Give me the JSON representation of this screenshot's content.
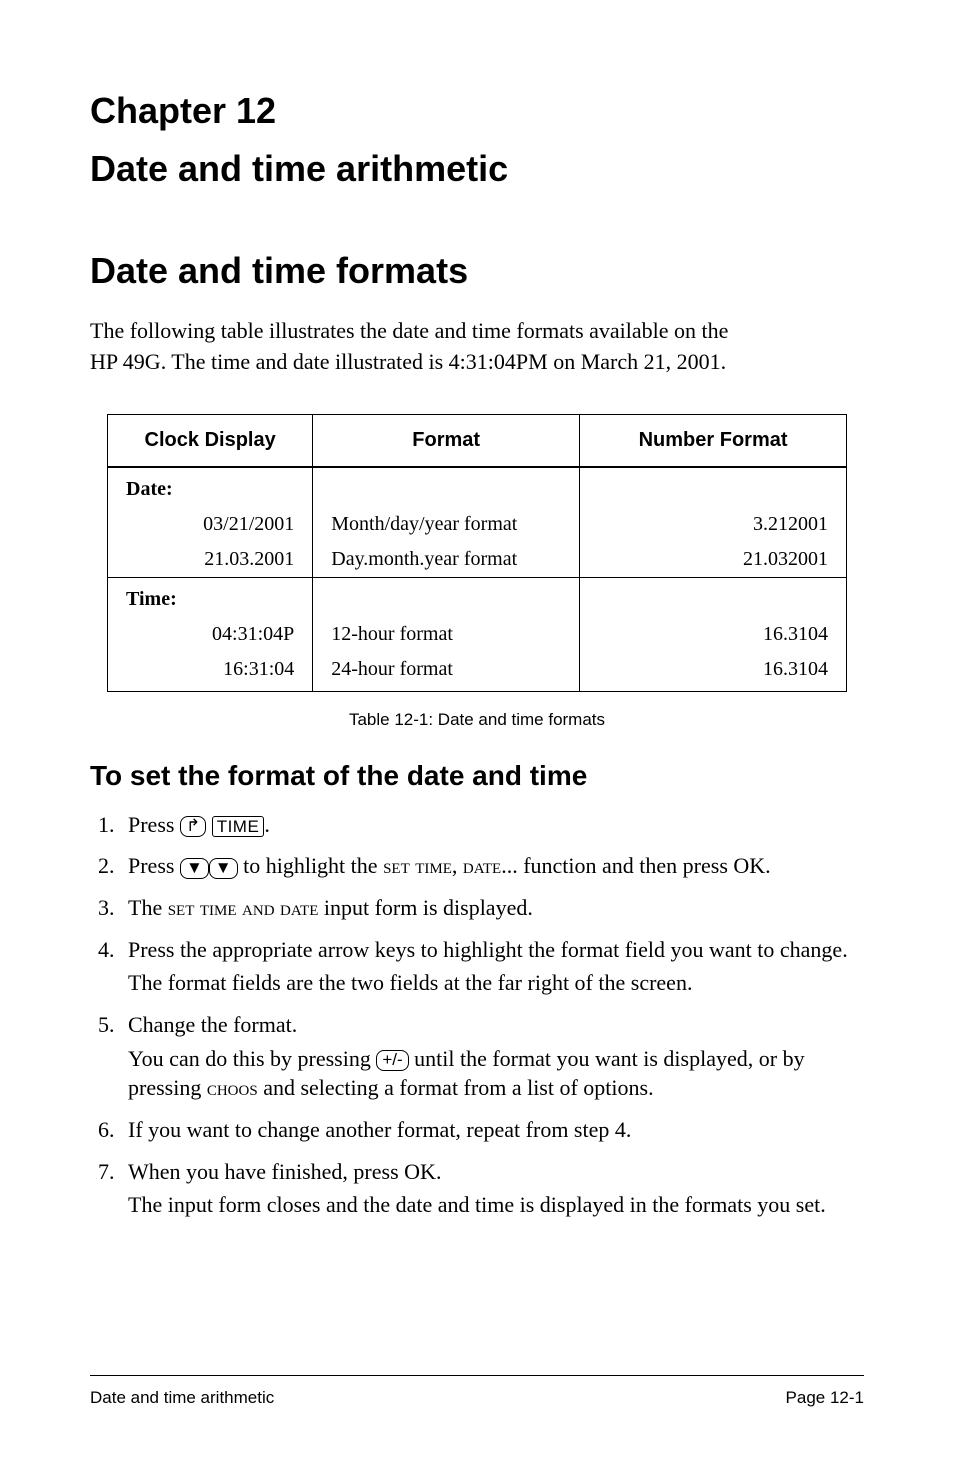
{
  "chapter_label": "Chapter 12",
  "chapter_title": "Date and time arithmetic",
  "section_title": "Date and time formats",
  "intro_line1": "The following table illustrates the date and time formats available on the",
  "intro_line2_a": "HP 49G. The time and date illustrated is 4:31:04",
  "intro_line2_pm": "PM",
  "intro_line2_b": " on March 21, 2001.",
  "table": {
    "headers": {
      "c1": "Clock Display",
      "c2": "Format",
      "c3": "Number Format"
    },
    "date_label": "Date:",
    "date_rows": [
      {
        "display": "03/21/2001",
        "format": "Month/day/year format",
        "number": "3.212001"
      },
      {
        "display": "21.03.2001",
        "format": "Day.month.year format",
        "number": "21.032001"
      }
    ],
    "time_label": "Time:",
    "time_rows": [
      {
        "display": "04:31:04P",
        "format": "12-hour format",
        "number": "16.3104"
      },
      {
        "display": "16:31:04",
        "format": "24-hour format",
        "number": "16.3104"
      }
    ],
    "caption": "Table 12-1: Date and time formats"
  },
  "subsection_title": "To set the format of the date and time",
  "keys": {
    "rshift": "↱",
    "time": "TIME",
    "down": "▼",
    "pm": "+/-"
  },
  "steps": {
    "s1a": "Press ",
    "s1b": ".",
    "s2a": "Press ",
    "s2b": " to highlight the ",
    "s2_fn": "set time, date...",
    "s2c": " function and then press ",
    "s2_ok": "OK",
    "s2d": ".",
    "s3a": "The ",
    "s3_fn": "set time and date",
    "s3b": " input form is displayed.",
    "s4a": "Press the appropriate arrow keys to highlight the format field you want to change.",
    "s4b": "The format fields are the two fields at the far right of the screen.",
    "s5a": "Change the format.",
    "s5b_a": "You can do this by pressing ",
    "s5b_b": " until the format you want is displayed, or by pressing ",
    "s5_choos": "choos",
    "s5b_c": " and selecting a format from a list of options.",
    "s6": "If you want to change another format, repeat from step 4.",
    "s7a": "When you have finished, press ",
    "s7_ok": "OK",
    "s7b": ".",
    "s7c": "The input form closes and the date and time is displayed in the formats you set."
  },
  "footer": {
    "left": "Date and time arithmetic",
    "right": "Page 12-1"
  }
}
